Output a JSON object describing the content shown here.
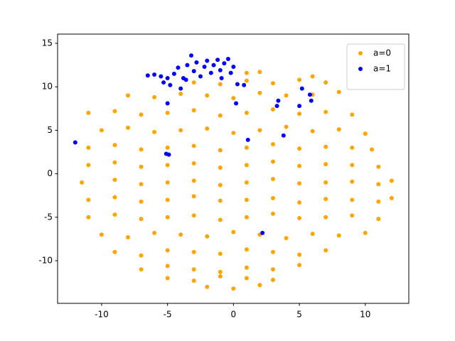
{
  "chart_data": {
    "type": "scatter",
    "xlim": [
      -13.34,
      13.3
    ],
    "ylim": [
      -14.9,
      16.06
    ],
    "xticks": [
      -10,
      -5,
      0,
      5,
      10
    ],
    "yticks": [
      -10,
      -5,
      0,
      5,
      10,
      15
    ],
    "legend": "upper right",
    "series": [
      {
        "name": "a=0",
        "color": "orange",
        "x": [
          -2,
          0,
          2,
          -5,
          -3,
          -1,
          1,
          3,
          -7,
          -5,
          -3,
          -1,
          1,
          3,
          5,
          -9,
          -7,
          -5,
          -3,
          -1,
          1,
          3,
          5,
          7,
          -10,
          -8,
          -6,
          -4,
          -2,
          0,
          2,
          4,
          6,
          8,
          10,
          -11,
          -9,
          -7,
          -5,
          -3,
          -1,
          1,
          3,
          5,
          7,
          9,
          11,
          -11,
          -9,
          -7,
          -5,
          -3,
          -1,
          1,
          3,
          5,
          7,
          9,
          11,
          12,
          -11.5,
          -9,
          -7,
          -5,
          -3,
          -1,
          1,
          3,
          5,
          7,
          9,
          11,
          12,
          -11,
          -9,
          -7,
          -5,
          -3,
          -1,
          1,
          3,
          5,
          7,
          9,
          11,
          -11,
          -9,
          -7,
          -5,
          -3,
          -1,
          1,
          3,
          5,
          7,
          9,
          10.5,
          -10,
          -8,
          -6,
          -4,
          -2,
          0,
          2,
          4,
          6,
          8,
          10,
          -11,
          -9,
          -7,
          -5,
          -3,
          -1,
          1,
          3,
          5,
          7,
          9,
          -8,
          -6,
          -4,
          -2,
          0,
          2,
          4,
          6,
          8,
          -3,
          -1,
          1,
          3,
          5,
          7,
          1,
          2,
          6
        ],
        "y": [
          -13,
          -13.2,
          -12.8,
          -12,
          -12.3,
          -11.8,
          -12,
          -12.2,
          -11,
          -10.6,
          -11,
          -11.3,
          -10.8,
          -11,
          -10.5,
          -9,
          -9.4,
          -8.8,
          -9,
          -9.2,
          -8.7,
          -9,
          -9.3,
          -8.8,
          -7,
          -7.3,
          -6.8,
          -7,
          -7.2,
          -6.7,
          -7,
          -7.4,
          -6.9,
          -7.1,
          -6.8,
          -5,
          -4.7,
          -5.2,
          -5,
          -4.8,
          -5.3,
          -5,
          -4.6,
          -5.1,
          -5,
          -4.8,
          -5.2,
          -3,
          -2.7,
          -3.2,
          -3,
          -2.6,
          -3.1,
          -3,
          -2.8,
          -3.3,
          -2.9,
          -3,
          -3.2,
          -2.8,
          -1,
          -0.7,
          -1.2,
          -1,
          -0.8,
          -1.3,
          -1,
          -0.6,
          -1.1,
          -1,
          -0.9,
          -1.2,
          -0.8,
          1,
          1.3,
          0.8,
          1,
          1.2,
          0.7,
          1,
          1.4,
          0.9,
          1.1,
          1,
          0.8,
          3,
          3.3,
          2.8,
          3,
          3.2,
          2.7,
          3,
          3.4,
          2.9,
          3.1,
          3,
          2.8,
          5,
          5.3,
          4.8,
          5,
          5.2,
          4.7,
          5,
          5.4,
          4.9,
          5.1,
          4.6,
          7,
          7.2,
          6.8,
          7,
          7.3,
          6.7,
          7,
          7.4,
          6.9,
          7.1,
          6.8,
          9,
          8.8,
          9.2,
          9,
          8.7,
          9.3,
          9,
          9.1,
          9.4,
          10.5,
          10.3,
          10.7,
          10.4,
          10.8,
          10.5,
          11.6,
          11.7,
          11.2
        ]
      },
      {
        "name": "a=1",
        "color": "blue",
        "x": [
          -6.5,
          -6,
          -5.5,
          -5,
          -4.5,
          -4.8,
          -4.2,
          -3.8,
          -3.5,
          -3.2,
          -3,
          -2.8,
          -2.5,
          -2.2,
          -2,
          -1.7,
          -1.5,
          -1.2,
          -1,
          -0.7,
          -0.4,
          0,
          -0.9,
          -3.6,
          -5.3,
          -12,
          -5,
          -5.1,
          -4.9,
          1.1,
          3.8,
          3.3,
          3.4,
          5,
          5.2,
          5.8,
          5.9,
          2.2,
          0.2,
          0.3,
          0.8,
          -0.2,
          -4
        ],
        "y": [
          11.3,
          11.4,
          11.2,
          11,
          11.5,
          10.2,
          12.2,
          11,
          12.5,
          13.6,
          11.8,
          12.8,
          11.2,
          12.3,
          13,
          11.6,
          12.5,
          13.1,
          11.9,
          12.7,
          13.2,
          12.3,
          11,
          10.8,
          10.5,
          3.6,
          8.1,
          2.3,
          2.2,
          3.9,
          4.4,
          7.8,
          8.4,
          7.8,
          9.8,
          9.1,
          8.4,
          -6.8,
          8.1,
          10.3,
          10.2,
          11.6,
          9.8
        ]
      }
    ]
  }
}
